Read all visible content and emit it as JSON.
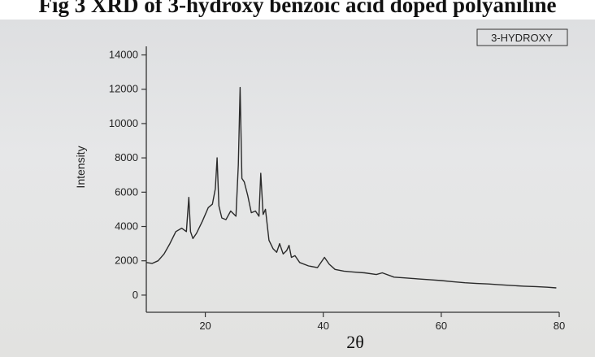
{
  "caption": "Fig 3 XRD of 3-hydroxy benzoic acid doped polyaniline",
  "colors": {
    "line": "#2a2a2a",
    "background": "#e3e4e5"
  },
  "chart_data": {
    "type": "line",
    "title": "",
    "xlabel": "2θ",
    "ylabel": "Intensity",
    "xlim": [
      10,
      80
    ],
    "ylim": [
      -1000,
      14500
    ],
    "x_ticks": [
      20,
      40,
      60,
      80
    ],
    "y_ticks": [
      0,
      2000,
      4000,
      6000,
      8000,
      10000,
      12000,
      14000
    ],
    "x_tick_labels": [
      "20",
      "40",
      "60",
      "80"
    ],
    "y_tick_labels": [
      "0",
      "2000",
      "4000",
      "6000",
      "8000",
      "10000",
      "12000",
      "14000"
    ],
    "legend": {
      "entries": [
        "3-HYDROXY"
      ],
      "position": "top-right"
    },
    "grid": false,
    "series": [
      {
        "name": "3-HYDROXY",
        "x": [
          10,
          11,
          12,
          13,
          14,
          15,
          16,
          16.8,
          17.2,
          17.5,
          17.9,
          18.5,
          19.5,
          20.5,
          21.2,
          21.7,
          22,
          22.3,
          22.8,
          23.5,
          24.3,
          25.2,
          25.6,
          25.9,
          26.2,
          26.6,
          27.2,
          27.8,
          28.5,
          29.1,
          29.4,
          29.8,
          30.2,
          30.8,
          31.5,
          32.1,
          32.6,
          33.2,
          33.8,
          34.2,
          34.6,
          35.2,
          36,
          37.5,
          39,
          40.2,
          41,
          42,
          43.5,
          45,
          47,
          49,
          50,
          52,
          54,
          56,
          58,
          60,
          62,
          64,
          66,
          68,
          70,
          72,
          74,
          76,
          78,
          79.5
        ],
        "y": [
          1900,
          1850,
          2000,
          2400,
          3000,
          3700,
          3900,
          3700,
          5700,
          3700,
          3300,
          3600,
          4300,
          5100,
          5300,
          6200,
          8000,
          5200,
          4500,
          4400,
          4900,
          4600,
          7600,
          12100,
          6800,
          6600,
          5800,
          4800,
          4900,
          4600,
          7100,
          4700,
          5000,
          3200,
          2700,
          2500,
          3000,
          2400,
          2600,
          2900,
          2200,
          2300,
          1900,
          1700,
          1600,
          2200,
          1800,
          1500,
          1400,
          1350,
          1300,
          1200,
          1300,
          1050,
          1000,
          950,
          900,
          850,
          780,
          720,
          680,
          650,
          600,
          560,
          520,
          500,
          460,
          420
        ]
      }
    ]
  }
}
